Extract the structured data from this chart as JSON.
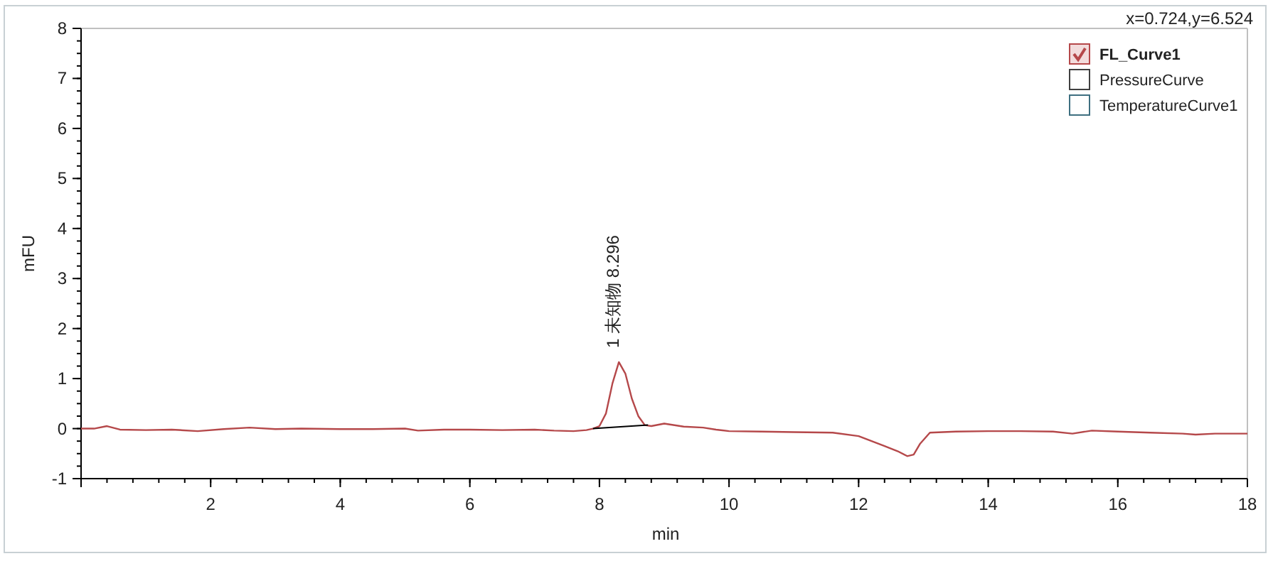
{
  "chart_data": {
    "type": "line",
    "xlabel": "min",
    "ylabel": "mFU",
    "xlim": [
      0,
      18
    ],
    "ylim": [
      -1,
      8
    ],
    "xticks": [
      {
        "value": 0,
        "label": null
      },
      2,
      4,
      6,
      8,
      10,
      12,
      14,
      16,
      18
    ],
    "yticks": [
      -1,
      0,
      1,
      2,
      3,
      4,
      5,
      6,
      7,
      8
    ],
    "legend": "top right",
    "series": [
      {
        "name": "FL_Curve1",
        "color": "#b5484a",
        "x": [
          0,
          0.2,
          0.4,
          0.6,
          1.0,
          1.4,
          1.8,
          2.2,
          2.6,
          3.0,
          3.4,
          4.0,
          4.5,
          5.0,
          5.2,
          5.6,
          6.0,
          6.5,
          7.0,
          7.3,
          7.6,
          7.8,
          7.9,
          8.0,
          8.1,
          8.2,
          8.3,
          8.4,
          8.5,
          8.6,
          8.7,
          8.8,
          9.0,
          9.3,
          9.6,
          9.8,
          10.0,
          10.5,
          11.0,
          11.6,
          12.0,
          12.4,
          12.6,
          12.75,
          12.85,
          12.95,
          13.1,
          13.5,
          14.0,
          14.5,
          15.0,
          15.3,
          15.6,
          16.0,
          16.5,
          17.0,
          17.2,
          17.5,
          18.0
        ],
        "values": [
          0.0,
          0.0,
          0.05,
          -0.02,
          -0.03,
          -0.02,
          -0.05,
          -0.01,
          0.02,
          -0.01,
          0.0,
          -0.01,
          -0.01,
          0.0,
          -0.04,
          -0.02,
          -0.02,
          -0.03,
          -0.02,
          -0.04,
          -0.05,
          -0.03,
          0.0,
          0.05,
          0.3,
          0.9,
          1.33,
          1.1,
          0.6,
          0.25,
          0.07,
          0.05,
          0.1,
          0.04,
          0.02,
          -0.02,
          -0.05,
          -0.06,
          -0.07,
          -0.08,
          -0.15,
          -0.35,
          -0.45,
          -0.55,
          -0.52,
          -0.3,
          -0.08,
          -0.06,
          -0.05,
          -0.05,
          -0.06,
          -0.1,
          -0.04,
          -0.06,
          -0.08,
          -0.1,
          -0.12,
          -0.1,
          -0.1
        ]
      },
      {
        "name": "PressureCurve",
        "color": "#404040"
      },
      {
        "name": "TemperatureCurve1",
        "color": "#3e6f80"
      },
      {
        "type": "line",
        "color": "#000000",
        "x": [
          7.9,
          8.75
        ],
        "values": [
          0.0,
          0.07
        ]
      }
    ],
    "annotations": [
      "x=0.724,y=6.524",
      {
        "text": "1 未知物 8.296",
        "x": 8.296,
        "y": 1.33
      }
    ]
  }
}
